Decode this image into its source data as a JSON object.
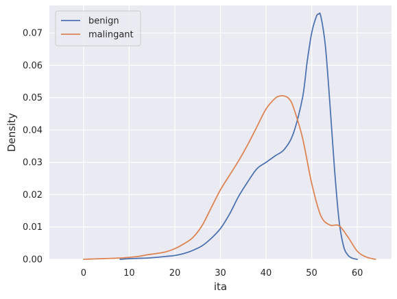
{
  "chart_data": {
    "type": "line",
    "xlabel": "ita",
    "ylabel": "Density",
    "xlim": [
      -7.5,
      67.5
    ],
    "ylim": [
      0,
      0.0785
    ],
    "xticks": [
      0,
      10,
      20,
      30,
      40,
      50,
      60
    ],
    "xtick_labels": [
      "0",
      "10",
      "20",
      "30",
      "40",
      "50",
      "60"
    ],
    "yticks": [
      0,
      0.01,
      0.02,
      0.03,
      0.04,
      0.05,
      0.06,
      0.07
    ],
    "ytick_labels": [
      "0.00",
      "0.01",
      "0.02",
      "0.03",
      "0.04",
      "0.05",
      "0.06",
      "0.07"
    ],
    "grid": true,
    "background": "#eaeaf2",
    "legend_position": "top-left",
    "series": [
      {
        "name": "benign",
        "color": "#4c72b0",
        "x": [
          8,
          10,
          12,
          14,
          16,
          18,
          20,
          22,
          24,
          26,
          28,
          30,
          32,
          34,
          36,
          38,
          40,
          42,
          44,
          46,
          48,
          49,
          50,
          51,
          51.5,
          52,
          53,
          54,
          55,
          56,
          57,
          58,
          59,
          60
        ],
        "y": [
          0.0,
          0.0002,
          0.0003,
          0.0004,
          0.0006,
          0.0009,
          0.0012,
          0.0018,
          0.0028,
          0.0042,
          0.0065,
          0.0095,
          0.014,
          0.0195,
          0.024,
          0.028,
          0.03,
          0.032,
          0.034,
          0.039,
          0.05,
          0.061,
          0.07,
          0.075,
          0.0758,
          0.0752,
          0.066,
          0.048,
          0.028,
          0.012,
          0.004,
          0.0012,
          0.0003,
          0.0
        ]
      },
      {
        "name": "malingant",
        "color": "#dd8452",
        "x": [
          0,
          4,
          8,
          10,
          12,
          14,
          16,
          18,
          20,
          22,
          24,
          26,
          28,
          30,
          32,
          34,
          36,
          38,
          40,
          42,
          43,
          44,
          45,
          46,
          48,
          50,
          52,
          54,
          56,
          58,
          60,
          62,
          64
        ],
        "y": [
          0.0,
          0.0002,
          0.0004,
          0.0006,
          0.0009,
          0.0014,
          0.0018,
          0.0023,
          0.0033,
          0.0048,
          0.0068,
          0.0105,
          0.016,
          0.0215,
          0.026,
          0.0305,
          0.0355,
          0.041,
          0.0465,
          0.0498,
          0.0505,
          0.0505,
          0.0497,
          0.047,
          0.0375,
          0.0235,
          0.0135,
          0.0106,
          0.0104,
          0.0068,
          0.0025,
          0.0007,
          0.0
        ]
      }
    ]
  }
}
